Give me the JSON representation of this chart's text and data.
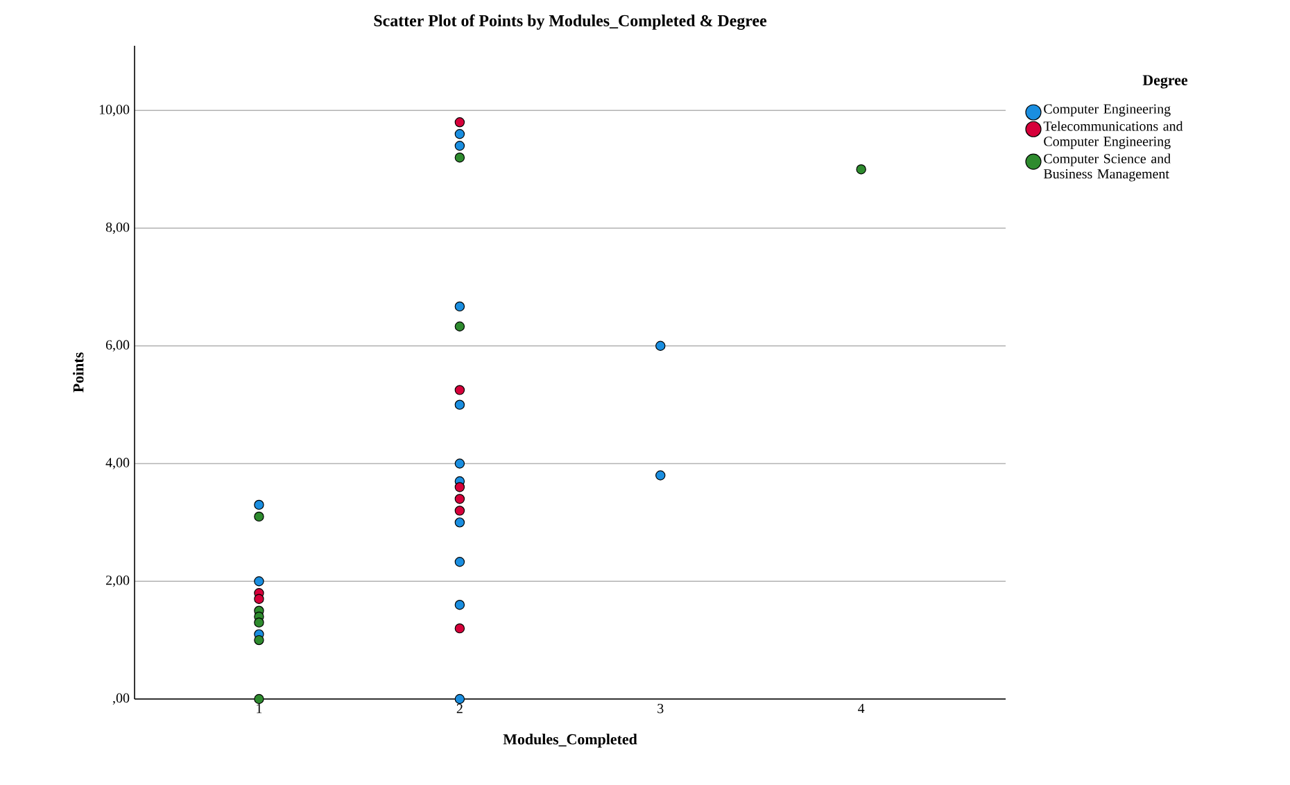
{
  "chart_data": {
    "type": "scatter",
    "title": "Scatter Plot of Points by Modules_Completed & Degree",
    "xlabel": "Modules_Completed",
    "ylabel": "Points",
    "legend_title": "Degree",
    "xlim": [
      0.38,
      4.72
    ],
    "xticks": [
      1,
      2,
      3,
      4
    ],
    "ylim": [
      0,
      11.1
    ],
    "yticks": [
      {
        "value": 0,
        "label": ",00"
      },
      {
        "value": 2,
        "label": "2,00"
      },
      {
        "value": 4,
        "label": "4,00"
      },
      {
        "value": 6,
        "label": "6,00"
      },
      {
        "value": 8,
        "label": "8,00"
      },
      {
        "value": 10,
        "label": "10,00"
      }
    ],
    "grid": "y",
    "legend": "right",
    "marker": "circle",
    "series": [
      {
        "name": "Computer Engineering",
        "color": "#1a8ee0",
        "x": [
          1,
          1,
          1,
          2,
          2,
          2,
          2,
          2,
          2,
          2,
          2,
          2,
          2,
          3,
          3
        ],
        "values": [
          3.3,
          2.0,
          1.1,
          9.6,
          9.4,
          6.67,
          5.0,
          4.0,
          3.7,
          3.0,
          2.33,
          1.6,
          0,
          6.0,
          3.8
        ]
      },
      {
        "name": "Telecommunications and Computer Engineering",
        "color": "#d6003a",
        "x": [
          1,
          1,
          2,
          2,
          2,
          2,
          2,
          2
        ],
        "values": [
          1.8,
          1.7,
          9.8,
          5.25,
          3.6,
          3.4,
          3.2,
          1.2
        ]
      },
      {
        "name": "Computer Science and Business Management",
        "color": "#2e8b2e",
        "x": [
          1,
          1,
          1,
          1,
          1,
          1,
          2,
          2,
          4
        ],
        "values": [
          3.1,
          1.5,
          1.4,
          1.3,
          1.0,
          0,
          9.2,
          6.33,
          9.0
        ]
      }
    ]
  }
}
